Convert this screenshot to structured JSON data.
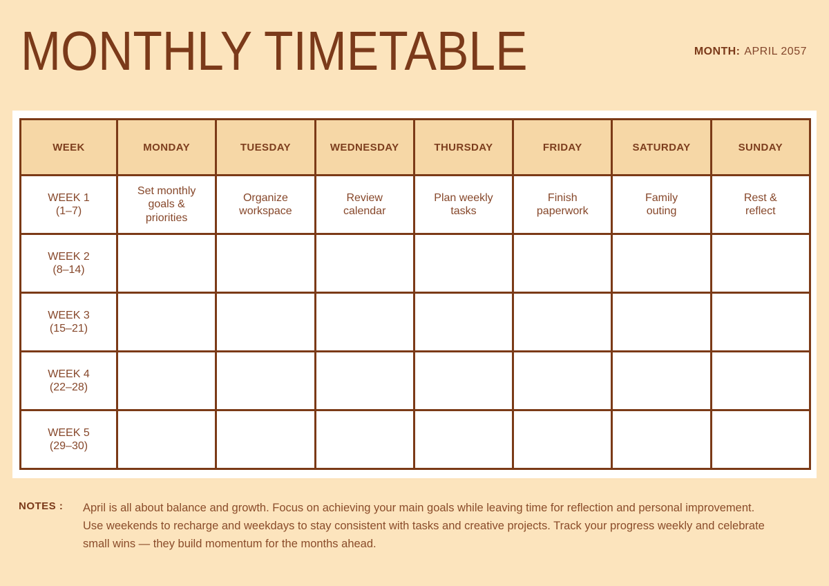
{
  "page": {
    "title": "MONTHLY TIMETABLE",
    "month_label": "MONTH:",
    "month_value": "APRIL 2057"
  },
  "theme": {
    "background": "#fce4bd",
    "header_fill": "#f6d7a6",
    "border": "#7b3a17",
    "title_text": "#7b3a1a",
    "cell_text": "#86472a",
    "sheet": "#ffffff"
  },
  "table": {
    "headers": [
      "WEEK",
      "MONDAY",
      "TUESDAY",
      "WEDNESDAY",
      "THURSDAY",
      "FRIDAY",
      "SATURDAY",
      "SUNDAY"
    ],
    "rows": [
      {
        "week": "WEEK 1\n(1–7)",
        "cells": [
          "Set monthly\ngoals &\npriorities",
          "Organize\nworkspace",
          "Review\ncalendar",
          "Plan weekly\ntasks",
          "Finish\npaperwork",
          "Family\nouting",
          "Rest &\nreflect"
        ]
      },
      {
        "week": "WEEK 2\n(8–14)",
        "cells": [
          "",
          "",
          "",
          "",
          "",
          "",
          ""
        ]
      },
      {
        "week": "WEEK 3\n(15–21)",
        "cells": [
          "",
          "",
          "",
          "",
          "",
          "",
          ""
        ]
      },
      {
        "week": "WEEK 4\n(22–28)",
        "cells": [
          "",
          "",
          "",
          "",
          "",
          "",
          ""
        ]
      },
      {
        "week": "WEEK 5\n(29–30)",
        "cells": [
          "",
          "",
          "",
          "",
          "",
          "",
          ""
        ]
      }
    ]
  },
  "notes": {
    "label": "NOTES :",
    "text": "April is all about balance and growth. Focus on achieving your main goals while leaving time for reflection and personal improvement. Use weekends to recharge and weekdays to stay consistent with tasks and creative projects. Track your progress weekly and celebrate small wins — they build momentum for the months ahead."
  }
}
